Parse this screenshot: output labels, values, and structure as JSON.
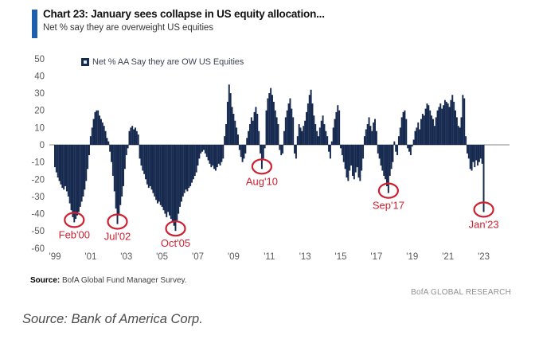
{
  "header": {
    "title": "Chart 23: January sees collapse in US equity allocation...",
    "subtitle": "Net % say they are overweight US equities",
    "accent_color": "#1e5fad"
  },
  "chart_data": {
    "type": "bar",
    "title": "Chart 23: January sees collapse in US equity allocation...",
    "subtitle": "Net % say they are overweight US equities",
    "legend": "Net % AA Say they are OW US Equities",
    "frequency": "monthly",
    "x_start": "1999-01",
    "x_end": "2023-01",
    "ylim": [
      -60,
      50
    ],
    "yticks": [
      50,
      40,
      30,
      20,
      10,
      0,
      -10,
      -20,
      -30,
      -40,
      -50,
      -60
    ],
    "xticks": [
      {
        "month_index": 0,
        "label": "'99"
      },
      {
        "month_index": 24,
        "label": "'01"
      },
      {
        "month_index": 48,
        "label": "'03"
      },
      {
        "month_index": 72,
        "label": "'05"
      },
      {
        "month_index": 96,
        "label": "'07"
      },
      {
        "month_index": 120,
        "label": "'09"
      },
      {
        "month_index": 144,
        "label": "'11"
      },
      {
        "month_index": 168,
        "label": "'13"
      },
      {
        "month_index": 192,
        "label": "'15"
      },
      {
        "month_index": 216,
        "label": "'17"
      },
      {
        "month_index": 240,
        "label": "'19"
      },
      {
        "month_index": 264,
        "label": "'21"
      },
      {
        "month_index": 288,
        "label": "'23"
      }
    ],
    "bar_color": "#16294f",
    "annotation_color": "#cf2030",
    "axis_text_color": "#595959",
    "grid": false,
    "legend_position": "top",
    "values": [
      -13,
      -16,
      -19,
      -21,
      -23,
      -25,
      -26,
      -24,
      -27,
      -30,
      -34,
      -38,
      -42,
      -45,
      -43,
      -41,
      -39,
      -36,
      -33,
      -30,
      -26,
      -21,
      -14,
      -6,
      5,
      10,
      15,
      19,
      20,
      20,
      17,
      15,
      13,
      11,
      8,
      4,
      2,
      -4,
      -10,
      -18,
      -27,
      -37,
      -46,
      -41,
      -35,
      -30,
      -24,
      -14,
      -6,
      -2,
      8,
      10,
      11,
      9,
      10,
      8,
      6,
      -8,
      -12,
      -15,
      -17,
      -20,
      -23,
      -25,
      -24,
      -26,
      -28,
      -30,
      -32,
      -34,
      -33,
      -35,
      -36,
      -38,
      -40,
      -42,
      -39,
      -41,
      -43,
      -45,
      -47,
      -50,
      -44,
      -40,
      -36,
      -33,
      -30,
      -28,
      -26,
      -27,
      -25,
      -24,
      -22,
      -20,
      -18,
      -16,
      -12,
      -8,
      -5,
      -4,
      -3,
      -5,
      -7,
      -9,
      -11,
      -13,
      -12,
      -14,
      -15,
      -13,
      -11,
      -12,
      -10,
      -8,
      5,
      12,
      25,
      35,
      30,
      22,
      18,
      14,
      10,
      6,
      -3,
      -7,
      -10,
      -8,
      -5,
      4,
      8,
      12,
      16,
      14,
      19,
      22,
      18,
      8,
      -5,
      -14,
      -8,
      -2,
      20,
      27,
      30,
      33,
      29,
      25,
      20,
      16,
      12,
      -3,
      -6,
      -5,
      8,
      16,
      20,
      24,
      27,
      21,
      16,
      -5,
      -8,
      5,
      12,
      10,
      8,
      11,
      14,
      19,
      24,
      29,
      32,
      24,
      17,
      12,
      8,
      5,
      10,
      14,
      17,
      12,
      8,
      5,
      -4,
      -8,
      2,
      10,
      15,
      19,
      23,
      20,
      -2,
      -6,
      -10,
      -14,
      -19,
      -21,
      -15,
      -12,
      -18,
      -20,
      -16,
      -13,
      -19,
      -21,
      -15,
      -8,
      5,
      9,
      12,
      16,
      11,
      8,
      13,
      15,
      8,
      -5,
      -8,
      -12,
      -15,
      -18,
      -20,
      -24,
      -28,
      -18,
      -14,
      -10,
      2,
      -4,
      -6,
      5,
      10,
      16,
      19,
      20,
      15,
      -2,
      -4,
      -6,
      -1,
      3,
      8,
      10,
      13,
      9,
      15,
      18,
      17,
      21,
      24,
      23,
      20,
      17,
      15,
      11,
      16,
      20,
      22,
      24,
      21,
      23,
      26,
      25,
      24,
      22,
      26,
      29,
      25,
      20,
      16,
      11,
      10,
      16,
      29,
      27,
      5,
      -5,
      -8,
      -14,
      -15,
      -10,
      -13,
      -9,
      -12,
      -10,
      -8,
      -11,
      -39
    ],
    "annotations": [
      {
        "label": "Feb'00",
        "month_index": 13,
        "value": -45
      },
      {
        "label": "Jul'02",
        "month_index": 42,
        "value": -46
      },
      {
        "label": "Oct'05",
        "month_index": 81,
        "value": -50
      },
      {
        "label": "Aug'10",
        "month_index": 139,
        "value": -14
      },
      {
        "label": "Sep'17",
        "month_index": 224,
        "value": -28
      },
      {
        "label": "Jan'23",
        "month_index": 288,
        "value": -39
      }
    ]
  },
  "footer": {
    "source_bold": "Source:",
    "source_rest": " BofA Global Fund Manager Survey.",
    "brand": "BofA GLOBAL RESEARCH"
  },
  "caption": "Source: Bank of America Corp."
}
